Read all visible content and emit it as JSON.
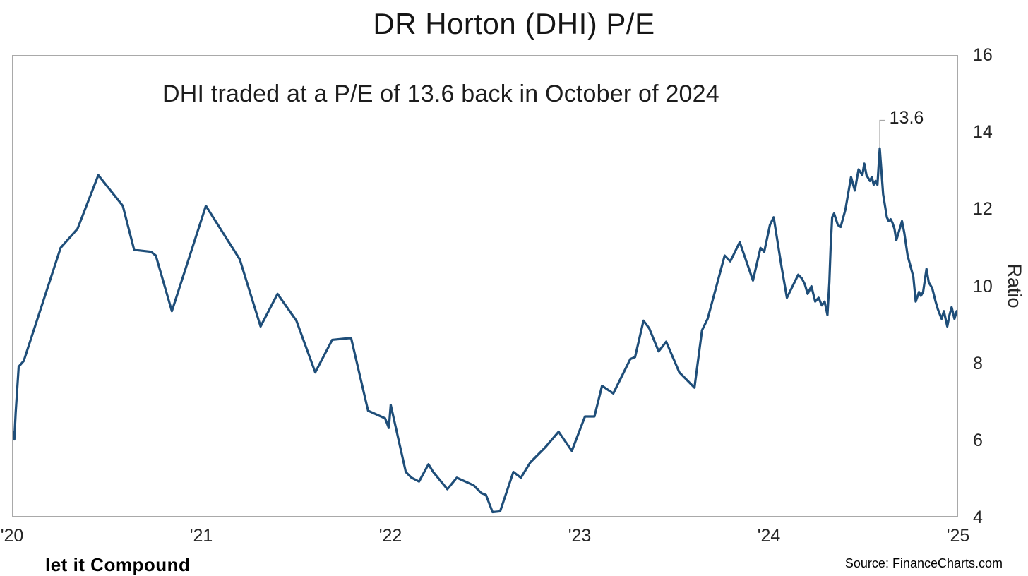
{
  "header": {
    "title": "DR Horton (DHI) P/E"
  },
  "annotation": {
    "text": "DHI traded at a P/E of 13.6 back in October of 2024"
  },
  "footer": {
    "brand": "let it Compound",
    "source": "Source: FinanceCharts.com"
  },
  "colors": {
    "line": "#1f4e79",
    "frame_border": "#a9a9a9",
    "callout_line": "#a6a6a6",
    "text": "#1a1a1a"
  },
  "chart_data": {
    "type": "line",
    "title": "DR Horton (DHI) P/E",
    "xlabel": "",
    "ylabel": "Ratio",
    "xlim": [
      2020,
      2025
    ],
    "ylim": [
      4,
      16
    ],
    "grid": false,
    "legend": "none",
    "y_ticks": [
      16,
      14,
      12,
      10,
      8,
      6,
      4
    ],
    "x_ticks": [
      {
        "label": "'20",
        "x": 2020
      },
      {
        "label": "'21",
        "x": 2021
      },
      {
        "label": "'22",
        "x": 2022
      },
      {
        "label": "'23",
        "x": 2023
      },
      {
        "label": "'24",
        "x": 2024
      },
      {
        "label": "'25",
        "x": 2025
      }
    ],
    "point_label": {
      "text": "13.6",
      "x": 2024.592,
      "y": 13.6
    },
    "series": [
      {
        "name": "DHI P/E ratio",
        "color": "#1f4e79",
        "points": [
          [
            2020.0,
            6.2
          ],
          [
            2020.005,
            6.0
          ],
          [
            2020.012,
            6.7
          ],
          [
            2020.028,
            7.9
          ],
          [
            2020.055,
            8.05
          ],
          [
            2020.25,
            11.0
          ],
          [
            2020.34,
            11.5
          ],
          [
            2020.45,
            12.9
          ],
          [
            2020.58,
            12.1
          ],
          [
            2020.64,
            10.95
          ],
          [
            2020.73,
            10.9
          ],
          [
            2020.755,
            10.8
          ],
          [
            2020.84,
            9.35
          ],
          [
            2021.02,
            12.1
          ],
          [
            2021.2,
            10.7
          ],
          [
            2021.31,
            8.95
          ],
          [
            2021.4,
            9.8
          ],
          [
            2021.5,
            9.1
          ],
          [
            2021.6,
            7.75
          ],
          [
            2021.69,
            8.6
          ],
          [
            2021.79,
            8.65
          ],
          [
            2021.88,
            6.75
          ],
          [
            2021.97,
            6.55
          ],
          [
            2021.99,
            6.3
          ],
          [
            2022.0,
            6.9
          ],
          [
            2022.08,
            5.15
          ],
          [
            2022.11,
            5.0
          ],
          [
            2022.15,
            4.9
          ],
          [
            2022.2,
            5.35
          ],
          [
            2022.225,
            5.15
          ],
          [
            2022.3,
            4.7
          ],
          [
            2022.35,
            5.0
          ],
          [
            2022.44,
            4.8
          ],
          [
            2022.48,
            4.6
          ],
          [
            2022.505,
            4.55
          ],
          [
            2022.54,
            4.1
          ],
          [
            2022.58,
            4.12
          ],
          [
            2022.65,
            5.15
          ],
          [
            2022.69,
            5.0
          ],
          [
            2022.74,
            5.4
          ],
          [
            2022.82,
            5.8
          ],
          [
            2022.89,
            6.2
          ],
          [
            2022.96,
            5.7
          ],
          [
            2023.03,
            6.6
          ],
          [
            2023.08,
            6.6
          ],
          [
            2023.12,
            7.4
          ],
          [
            2023.18,
            7.2
          ],
          [
            2023.27,
            8.1
          ],
          [
            2023.295,
            8.15
          ],
          [
            2023.34,
            9.1
          ],
          [
            2023.37,
            8.9
          ],
          [
            2023.42,
            8.3
          ],
          [
            2023.46,
            8.55
          ],
          [
            2023.53,
            7.75
          ],
          [
            2023.61,
            7.35
          ],
          [
            2023.65,
            8.85
          ],
          [
            2023.68,
            9.15
          ],
          [
            2023.77,
            10.8
          ],
          [
            2023.8,
            10.65
          ],
          [
            2023.85,
            11.15
          ],
          [
            2023.92,
            10.15
          ],
          [
            2023.96,
            11.0
          ],
          [
            2023.98,
            10.9
          ],
          [
            2024.01,
            11.6
          ],
          [
            2024.03,
            11.8
          ],
          [
            2024.07,
            10.55
          ],
          [
            2024.1,
            9.7
          ],
          [
            2024.16,
            10.3
          ],
          [
            2024.18,
            10.2
          ],
          [
            2024.195,
            10.05
          ],
          [
            2024.21,
            9.8
          ],
          [
            2024.23,
            10.0
          ],
          [
            2024.25,
            9.6
          ],
          [
            2024.268,
            9.7
          ],
          [
            2024.285,
            9.5
          ],
          [
            2024.3,
            9.6
          ],
          [
            2024.315,
            9.25
          ],
          [
            2024.325,
            10.1
          ],
          [
            2024.332,
            11.05
          ],
          [
            2024.34,
            11.8
          ],
          [
            2024.35,
            11.9
          ],
          [
            2024.37,
            11.6
          ],
          [
            2024.385,
            11.55
          ],
          [
            2024.41,
            12.0
          ],
          [
            2024.44,
            12.85
          ],
          [
            2024.46,
            12.5
          ],
          [
            2024.48,
            13.05
          ],
          [
            2024.5,
            12.9
          ],
          [
            2024.51,
            13.2
          ],
          [
            2024.522,
            12.9
          ],
          [
            2024.54,
            12.75
          ],
          [
            2024.55,
            12.85
          ],
          [
            2024.56,
            12.65
          ],
          [
            2024.57,
            12.75
          ],
          [
            2024.58,
            12.65
          ],
          [
            2024.592,
            13.6
          ],
          [
            2024.61,
            12.4
          ],
          [
            2024.63,
            11.8
          ],
          [
            2024.64,
            11.7
          ],
          [
            2024.65,
            11.75
          ],
          [
            2024.66,
            11.65
          ],
          [
            2024.67,
            11.5
          ],
          [
            2024.68,
            11.2
          ],
          [
            2024.692,
            11.4
          ],
          [
            2024.71,
            11.7
          ],
          [
            2024.722,
            11.4
          ],
          [
            2024.74,
            10.8
          ],
          [
            2024.77,
            10.25
          ],
          [
            2024.783,
            9.6
          ],
          [
            2024.8,
            9.85
          ],
          [
            2024.81,
            9.75
          ],
          [
            2024.822,
            9.85
          ],
          [
            2024.84,
            10.45
          ],
          [
            2024.852,
            10.1
          ],
          [
            2024.87,
            9.95
          ],
          [
            2024.888,
            9.6
          ],
          [
            2024.9,
            9.4
          ],
          [
            2024.92,
            9.15
          ],
          [
            2024.932,
            9.35
          ],
          [
            2024.95,
            8.95
          ],
          [
            2024.962,
            9.25
          ],
          [
            2024.973,
            9.45
          ],
          [
            2024.988,
            9.15
          ],
          [
            2025.0,
            9.35
          ]
        ]
      }
    ]
  }
}
